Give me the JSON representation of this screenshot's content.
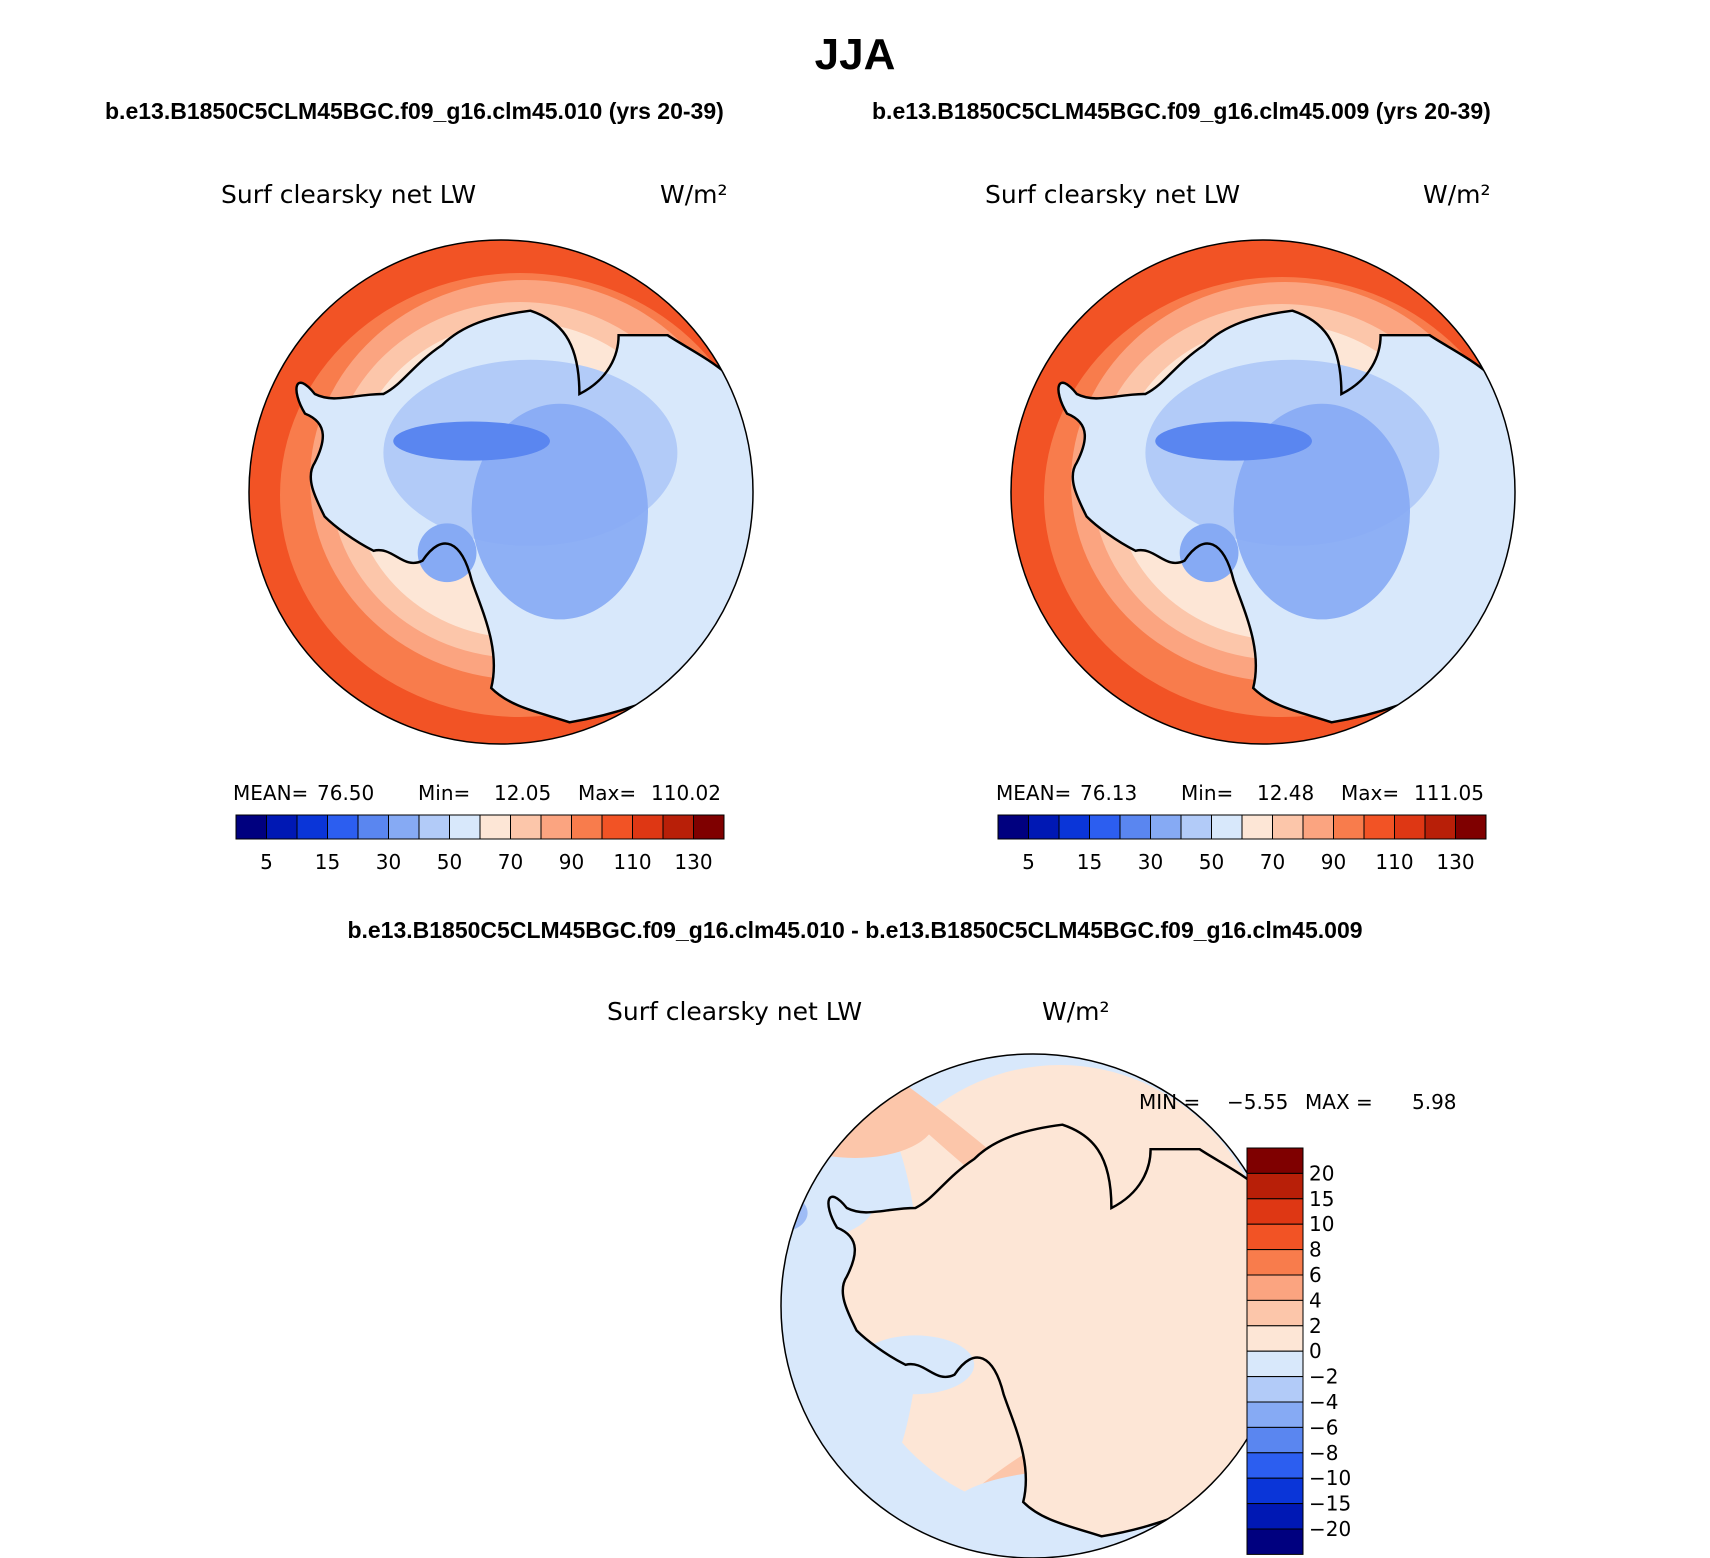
{
  "title": "JJA",
  "case_titles": {
    "left": "b.e13.B1850C5CLM45BGC.f09_g16.clm45.010 (yrs 20-39)",
    "right": "b.e13.B1850C5CLM45BGC.f09_g16.clm45.009 (yrs 20-39)"
  },
  "diff_title": "b.e13.B1850C5CLM45BGC.f09_g16.clm45.010 - b.e13.B1850C5CLM45BGC.f09_g16.clm45.009",
  "panels": {
    "left": {
      "variable": "Surf clearsky net LW",
      "units": "W/m²",
      "stats": {
        "mean_label": "MEAN=",
        "mean": "76.50",
        "min_label": "Min=",
        "min": "12.05",
        "max_label": "Max=",
        "max": "110.02"
      }
    },
    "right": {
      "variable": "Surf clearsky net LW",
      "units": "W/m²",
      "stats": {
        "mean_label": "MEAN=",
        "mean": "76.13",
        "min_label": "Min=",
        "min": "12.48",
        "max_label": "Max=",
        "max": "111.05"
      }
    },
    "diff": {
      "variable": "Surf clearsky net LW",
      "units": "W/m²",
      "stats": {
        "min_label": "MIN =",
        "min": "−5.55",
        "max_label": "MAX =",
        "max": "5.98"
      }
    }
  },
  "colorbar_main": {
    "tick_labels": [
      "5",
      "15",
      "30",
      "50",
      "70",
      "90",
      "110",
      "130"
    ],
    "colors": [
      "#00007f",
      "#0018b4",
      "#0a35d8",
      "#2c5ef0",
      "#5a86f0",
      "#86aaf4",
      "#b2cbf8",
      "#d8e8fb",
      "#fde6d6",
      "#fcc6aa",
      "#fba480",
      "#f87c4c",
      "#f25325",
      "#de3714",
      "#b81f08",
      "#7f0000"
    ]
  },
  "colorbar_diff": {
    "tick_labels": [
      "20",
      "15",
      "10",
      "8",
      "6",
      "4",
      "2",
      "0",
      "−2",
      "−4",
      "−6",
      "−8",
      "−10",
      "−15",
      "−20"
    ],
    "colors": [
      "#7f0000",
      "#b81f08",
      "#de3714",
      "#f25325",
      "#f87c4c",
      "#fba480",
      "#fcc6aa",
      "#fde6d6",
      "#d8e8fb",
      "#b2cbf8",
      "#86aaf4",
      "#5a86f0",
      "#2c5ef0",
      "#0a35d8",
      "#0018b4",
      "#00007f"
    ]
  }
}
